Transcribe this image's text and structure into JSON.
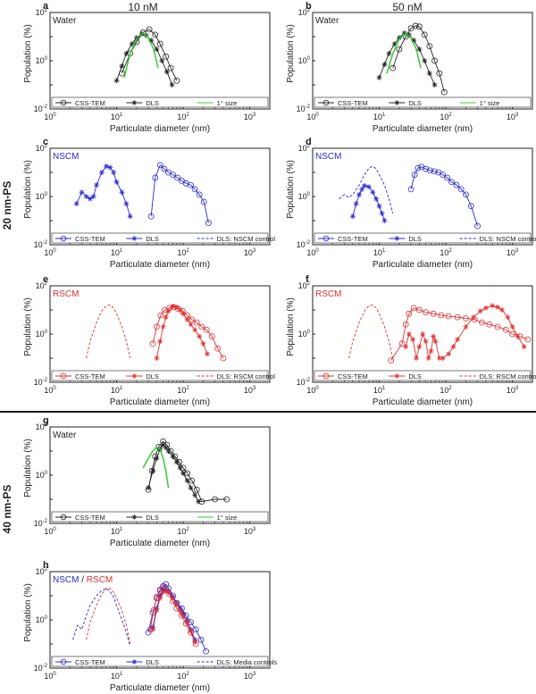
{
  "column_headers": [
    "10 nM",
    "50 nM"
  ],
  "row_labels": [
    "20 nm-PS",
    "40 nm-PS"
  ],
  "colors": {
    "black": "#222222",
    "green": "#33cc33",
    "blue": "#2a2ad0",
    "red": "#e03030"
  },
  "chart_data": [
    {
      "type": "line",
      "panel": "a",
      "tag": "Water",
      "tag_color": "#222222",
      "xlabel": "Particulate diameter (nm)",
      "ylabel": "Population (%)",
      "xscale": "log",
      "yscale": "log",
      "xlim": [
        1,
        2000
      ],
      "ylim": [
        0.01,
        100
      ],
      "series": [
        {
          "name": "CSS-TEM",
          "marker": "circle",
          "style": "solid",
          "color": "#222222",
          "x": [
            12,
            16,
            20,
            25,
            31,
            38,
            45,
            55,
            65,
            80
          ],
          "y": [
            0.3,
            2,
            6,
            15,
            20,
            12,
            5,
            1.5,
            0.5,
            0.15
          ]
        },
        {
          "name": "DLS",
          "marker": "star",
          "style": "solid",
          "color": "#222222",
          "x": [
            10,
            12,
            14,
            17,
            20,
            24,
            28,
            33,
            40,
            48,
            57,
            68
          ],
          "y": [
            0.15,
            0.6,
            2,
            5,
            9,
            13,
            11,
            7,
            3,
            1,
            0.35,
            0.1
          ]
        },
        {
          "name": "1° size",
          "marker": "none",
          "style": "solid",
          "color": "#33cc33",
          "x": [
            13,
            16,
            20,
            25,
            30,
            36,
            42
          ],
          "y": [
            0.2,
            2,
            8,
            14,
            9,
            3,
            0.5
          ]
        }
      ]
    },
    {
      "type": "line",
      "panel": "b",
      "tag": "Water",
      "tag_color": "#222222",
      "xlabel": "Particulate diameter (nm)",
      "ylabel": "Population (%)",
      "xscale": "log",
      "yscale": "log",
      "xlim": [
        1,
        2000
      ],
      "ylim": [
        0.01,
        100
      ],
      "series": [
        {
          "name": "CSS-TEM",
          "marker": "circle",
          "style": "solid",
          "color": "#222222",
          "x": [
            16,
            20,
            25,
            30,
            35,
            40,
            48,
            57,
            68,
            80,
            95
          ],
          "y": [
            0.5,
            3,
            10,
            22,
            28,
            26,
            12,
            4,
            1,
            0.3,
            0.05
          ]
        },
        {
          "name": "DLS",
          "marker": "star",
          "style": "solid",
          "color": "#222222",
          "x": [
            10,
            12,
            14,
            17,
            20,
            24,
            28,
            33,
            40,
            48,
            57,
            68
          ],
          "y": [
            0.2,
            0.7,
            2,
            5,
            9,
            14,
            12,
            7,
            3,
            1,
            0.3,
            0.1
          ]
        },
        {
          "name": "1° size",
          "marker": "none",
          "style": "solid",
          "color": "#33cc33",
          "x": [
            13,
            16,
            20,
            25,
            30,
            36,
            42
          ],
          "y": [
            0.3,
            2,
            8,
            14,
            9,
            3,
            0.5
          ]
        }
      ]
    },
    {
      "type": "line",
      "panel": "c",
      "tag": "NSCM",
      "tag_color": "#2a2ad0",
      "xlabel": "Particulate diameter (nm)",
      "ylabel": "Population (%)",
      "xscale": "log",
      "yscale": "log",
      "xlim": [
        1,
        2000
      ],
      "ylim": [
        0.01,
        100
      ],
      "series": [
        {
          "name": "CSS-TEM",
          "marker": "circle",
          "style": "solid",
          "color": "#2a2ad0",
          "x": [
            33,
            38,
            45,
            52,
            60,
            70,
            82,
            95,
            110,
            130,
            150,
            175,
            205,
            240
          ],
          "y": [
            0.15,
            6,
            20,
            14,
            10,
            8,
            6,
            4.5,
            3.5,
            3,
            2,
            1.2,
            0.6,
            0.08
          ]
        },
        {
          "name": "DLS",
          "marker": "star",
          "style": "solid",
          "color": "#2a2ad0",
          "x": [
            2.5,
            3,
            3.5,
            4,
            4.5,
            5,
            6,
            7,
            8,
            9,
            10,
            12,
            14,
            16
          ],
          "y": [
            0.5,
            1.5,
            1,
            0.8,
            1,
            3,
            10,
            18,
            16,
            10,
            4,
            1.5,
            0.5,
            0.15
          ]
        },
        {
          "name": "DLS: NSCM control",
          "marker": "none",
          "style": "dashed",
          "color": "#2a2ad0",
          "x": [],
          "y": []
        }
      ]
    },
    {
      "type": "line",
      "panel": "d",
      "tag": "NSCM",
      "tag_color": "#2a2ad0",
      "xlabel": "Particulate diameter (nm)",
      "ylabel": "Population (%)",
      "xscale": "log",
      "yscale": "log",
      "xlim": [
        1,
        2000
      ],
      "ylim": [
        0.01,
        100
      ],
      "series": [
        {
          "name": "CSS-TEM",
          "marker": "circle",
          "style": "solid",
          "color": "#2a2ad0",
          "x": [
            30,
            34,
            38,
            43,
            50,
            58,
            67,
            78,
            90,
            105,
            122,
            145,
            170,
            200,
            240,
            300
          ],
          "y": [
            2,
            8,
            15,
            17,
            14,
            12,
            11,
            10,
            8,
            6,
            4,
            3,
            2,
            1.2,
            0.4,
            0.06
          ]
        },
        {
          "name": "DLS",
          "marker": "star",
          "style": "solid",
          "color": "#2a2ad0",
          "x": [
            4,
            4.5,
            5,
            5.5,
            6,
            7,
            8,
            9,
            10,
            11,
            12
          ],
          "y": [
            0.15,
            0.5,
            1.2,
            2,
            2.8,
            2.5,
            1.5,
            0.8,
            0.4,
            0.2,
            0.1
          ]
        },
        {
          "name": "DLS: NSCM control",
          "marker": "none",
          "style": "dashed",
          "color": "#2a2ad0",
          "x": [
            2.5,
            3,
            3.5,
            4,
            5,
            6,
            7,
            8,
            9,
            10,
            12,
            14,
            16
          ],
          "y": [
            0.8,
            1.2,
            0.9,
            1.2,
            3,
            8,
            15,
            18,
            14,
            8,
            3,
            0.8,
            0.2
          ]
        }
      ]
    },
    {
      "type": "line",
      "panel": "e",
      "tag": "RSCM",
      "tag_color": "#e03030",
      "xlabel": "Particulate diameter (nm)",
      "ylabel": "Population (%)",
      "xscale": "log",
      "yscale": "log",
      "xlim": [
        1,
        2000
      ],
      "ylim": [
        0.01,
        100
      ],
      "series": [
        {
          "name": "CSS-TEM",
          "marker": "circle",
          "style": "solid",
          "color": "#e03030",
          "x": [
            35,
            40,
            46,
            53,
            62,
            72,
            84,
            98,
            115,
            135,
            160,
            190,
            225,
            270,
            330,
            400
          ],
          "y": [
            0.4,
            2,
            6,
            10,
            12,
            13,
            11,
            9,
            6,
            4,
            3,
            2,
            1.5,
            0.8,
            0.25,
            0.1
          ]
        },
        {
          "name": "DLS",
          "marker": "star",
          "style": "solid",
          "color": "#e03030",
          "x": [
            40,
            45,
            50,
            55,
            60,
            70,
            80,
            90,
            100,
            115,
            130,
            150,
            175,
            200,
            230
          ],
          "y": [
            0.1,
            0.5,
            2,
            5,
            9,
            14,
            13,
            10,
            7,
            4,
            2.5,
            1.5,
            0.8,
            0.4,
            0.15
          ]
        },
        {
          "name": "DLS: RSCM control",
          "marker": "none",
          "style": "dashed",
          "color": "#e03030",
          "x": [
            3.5,
            4,
            5,
            6,
            7,
            8,
            9,
            10,
            12,
            14,
            16
          ],
          "y": [
            0.1,
            0.5,
            3,
            9,
            15,
            16,
            12,
            7,
            2,
            0.5,
            0.1
          ]
        }
      ]
    },
    {
      "type": "line",
      "panel": "f",
      "tag": "RSCM",
      "tag_color": "#e03030",
      "xlabel": "Particulate diameter (nm)",
      "ylabel": "Population (%)",
      "xscale": "log",
      "yscale": "log",
      "xlim": [
        1,
        2000
      ],
      "ylim": [
        0.01,
        100
      ],
      "series": [
        {
          "name": "CSS-TEM",
          "marker": "circle",
          "style": "solid",
          "color": "#e03030",
          "x": [
            15,
            22,
            25,
            28,
            33,
            40,
            50,
            65,
            85,
            110,
            150,
            200,
            270,
            350,
            450,
            600,
            800,
            1000,
            1300,
            1700
          ],
          "y": [
            0.08,
            0.4,
            2.5,
            7,
            12,
            10,
            8,
            7,
            6,
            5.5,
            5,
            4.5,
            4,
            3,
            2.5,
            2,
            1.5,
            1,
            0.8,
            0.6
          ]
        },
        {
          "name": "DLS",
          "marker": "star",
          "style": "solid",
          "color": "#e03030",
          "x": [
            25,
            28,
            32,
            36,
            40,
            45,
            50,
            55,
            60,
            65,
            70,
            80,
            90,
            110,
            130,
            150,
            200,
            260,
            330,
            400,
            500,
            600,
            700,
            850,
            1000,
            1200,
            1500
          ],
          "y": [
            0.3,
            1,
            0.6,
            0.1,
            0.3,
            1,
            0.5,
            0.1,
            0.2,
            0.8,
            0.5,
            0.1,
            0.1,
            0.15,
            0.3,
            0.6,
            2,
            5,
            9,
            12,
            15,
            13,
            10,
            5,
            2,
            0.8,
            0.3
          ]
        },
        {
          "name": "DLS: RSCM control",
          "marker": "none",
          "style": "dashed",
          "color": "#e03030",
          "x": [
            3.5,
            4,
            5,
            6,
            7,
            8,
            9,
            10,
            12,
            14,
            16
          ],
          "y": [
            0.1,
            0.5,
            3,
            9,
            15,
            16,
            12,
            7,
            2,
            0.5,
            0.1
          ]
        }
      ]
    },
    {
      "type": "line",
      "panel": "g",
      "tag": "Water",
      "tag_color": "#222222",
      "xlabel": "Particulate diameter (nm)",
      "ylabel": "Population (%)",
      "xscale": "log",
      "yscale": "log",
      "xlim": [
        1,
        2000
      ],
      "ylim": [
        0.01,
        100
      ],
      "series": [
        {
          "name": "CSS-TEM",
          "marker": "circle",
          "style": "solid",
          "color": "#222222",
          "x": [
            30,
            34,
            38,
            43,
            50,
            57,
            65,
            75,
            87,
            100,
            115,
            135,
            160,
            190,
            300,
            450
          ],
          "y": [
            0.25,
            1.5,
            6,
            15,
            25,
            18,
            10,
            6,
            3.5,
            2,
            1.2,
            0.6,
            0.25,
            0.08,
            0.1,
            0.1
          ]
        },
        {
          "name": "DLS",
          "marker": "star",
          "style": "solid",
          "color": "#222222",
          "x": [
            30,
            35,
            40,
            45,
            50,
            55,
            60,
            70,
            80,
            90,
            100,
            115,
            130,
            150,
            170
          ],
          "y": [
            0.3,
            1.5,
            5,
            12,
            18,
            14,
            10,
            6,
            3.5,
            2,
            1.2,
            0.6,
            0.3,
            0.15,
            0.08
          ]
        },
        {
          "name": "1° size",
          "marker": "none",
          "style": "solid",
          "color": "#33cc33",
          "x": [
            25,
            30,
            35,
            40,
            45,
            50,
            55,
            60
          ],
          "y": [
            2,
            5,
            10,
            14,
            12,
            5,
            1.5,
            0.3
          ]
        }
      ]
    },
    {
      "type": "line",
      "panel": "h",
      "tag": "NSCM / RSCM",
      "tag_parts": [
        "NSCM",
        " / ",
        "RSCM"
      ],
      "tag_colors": [
        "#2a2ad0",
        "#222222",
        "#e03030"
      ],
      "xlabel": "Particulate diameter (nm)",
      "ylabel": "Population (%)",
      "xscale": "log",
      "yscale": "log",
      "xlim": [
        1,
        2000
      ],
      "ylim": [
        0.01,
        100
      ],
      "series": [
        {
          "name": "CSS-TEM",
          "marker": "circle",
          "style": "solid",
          "color": "#2a2ad0",
          "x": [
            30,
            35,
            40,
            45,
            50,
            55,
            60,
            70,
            80,
            95,
            110,
            130,
            155,
            185,
            220
          ],
          "y": [
            0.3,
            2,
            8,
            18,
            25,
            30,
            20,
            10,
            5,
            3,
            1.5,
            0.8,
            0.4,
            0.15,
            0.05
          ]
        },
        {
          "name": "CSS-TEM",
          "marker": "circle",
          "style": "solid",
          "color": "#e03030",
          "x": [
            32,
            36,
            40,
            45,
            50,
            55,
            62,
            70,
            80,
            95,
            110,
            130,
            155
          ],
          "y": [
            0.4,
            2.5,
            9,
            16,
            22,
            20,
            12,
            6,
            3,
            1.5,
            0.7,
            0.3,
            0.1
          ]
        },
        {
          "name": "DLS",
          "marker": "star",
          "style": "solid",
          "color": "#2a2ad0",
          "x": [
            35,
            40,
            45,
            50,
            55,
            60,
            70,
            80,
            90,
            100,
            115,
            130,
            150
          ],
          "y": [
            0.5,
            3,
            10,
            16,
            18,
            15,
            9,
            5,
            3,
            1.8,
            0.9,
            0.4,
            0.15
          ]
        },
        {
          "name": "DLS",
          "marker": "star",
          "style": "solid",
          "color": "#e03030",
          "x": [
            35,
            40,
            45,
            50,
            55,
            60,
            70,
            80,
            90,
            100,
            115,
            130,
            150
          ],
          "y": [
            0.4,
            2.5,
            8,
            14,
            16,
            14,
            8,
            4.5,
            2.5,
            1.5,
            0.8,
            0.35,
            0.12
          ]
        },
        {
          "name": "DLS: Media controls",
          "marker": "none",
          "style": "dashed",
          "color": "#2a2ad0",
          "x": [
            2.2,
            2.6,
            3,
            3.5,
            4,
            5,
            6,
            7,
            8,
            9,
            10,
            12,
            14,
            16
          ],
          "y": [
            0.15,
            0.6,
            0.4,
            1.5,
            4,
            10,
            17,
            20,
            15,
            9,
            4,
            1,
            0.3,
            0.08
          ]
        },
        {
          "name": "",
          "marker": "none",
          "style": "dashed",
          "color": "#e03030",
          "x": [
            3.5,
            4,
            5,
            6,
            7,
            8,
            9,
            10,
            12,
            14,
            16
          ],
          "y": [
            0.15,
            0.8,
            4,
            12,
            20,
            20,
            14,
            8,
            2.5,
            0.6,
            0.1
          ]
        }
      ]
    }
  ]
}
